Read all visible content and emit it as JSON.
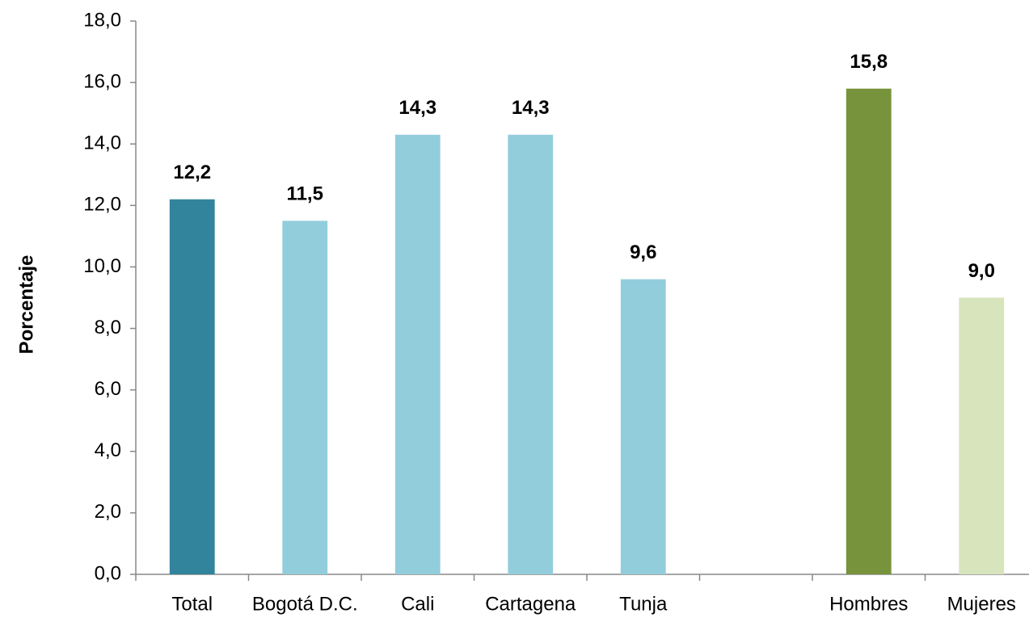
{
  "chart_data": {
    "type": "bar",
    "y_label": "Porcentaje",
    "categories": [
      "Total",
      "Bogotá D.C.",
      "Cali",
      "Cartagena",
      "Tunja",
      null,
      "Hombres",
      "Mujeres"
    ],
    "values": [
      12.2,
      11.5,
      14.3,
      14.3,
      9.6,
      null,
      15.8,
      9.0
    ],
    "value_labels": [
      "12,2",
      "11,5",
      "14,3",
      "14,3",
      "9,6",
      null,
      "15,8",
      "9,0"
    ],
    "colors": [
      "#31849b",
      "#92cddc",
      "#92cddc",
      "#92cddc",
      "#92cddc",
      null,
      "#77933c",
      "#d7e4bc"
    ],
    "ylim": [
      0,
      18
    ],
    "yticks": [
      {
        "value": 0,
        "label": "0,0"
      },
      {
        "value": 2,
        "label": "2,0"
      },
      {
        "value": 4,
        "label": "4,0"
      },
      {
        "value": 6,
        "label": "6,0"
      },
      {
        "value": 8,
        "label": "8,0"
      },
      {
        "value": 10,
        "label": "10,0"
      },
      {
        "value": 12,
        "label": "12,0"
      },
      {
        "value": 14,
        "label": "14,0"
      },
      {
        "value": 16,
        "label": "16,0"
      },
      {
        "value": 18,
        "label": "18,0"
      }
    ],
    "grid": false
  }
}
